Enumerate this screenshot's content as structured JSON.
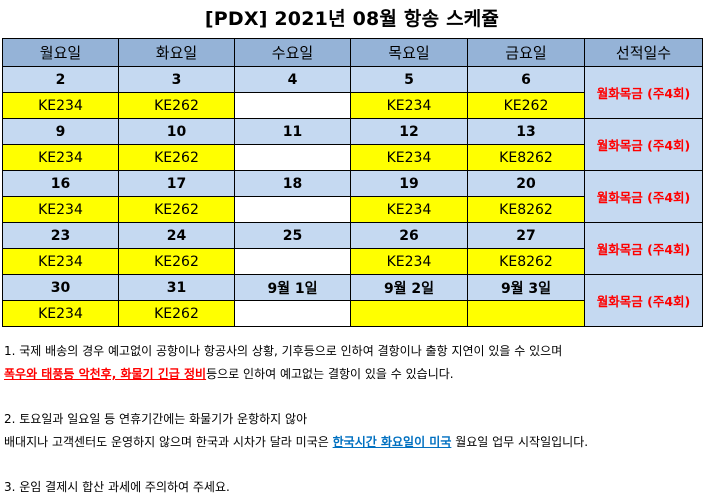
{
  "title": "[PDX] 2021년 08월 항송 스케쥴",
  "headers": [
    "월요일",
    "화요일",
    "수요일",
    "목요일",
    "금요일",
    "선적일수"
  ],
  "weeks": [
    {
      "dates": [
        "2",
        "3",
        "4",
        "5",
        "6"
      ],
      "flights": [
        "KE234",
        "KE262",
        "",
        "KE234",
        "KE262"
      ],
      "freq": "월화목금 (주4회)"
    },
    {
      "dates": [
        "9",
        "10",
        "11",
        "12",
        "13"
      ],
      "flights": [
        "KE234",
        "KE262",
        "",
        "KE234",
        "KE8262"
      ],
      "freq": "월화목금 (주4회)"
    },
    {
      "dates": [
        "16",
        "17",
        "18",
        "19",
        "20"
      ],
      "flights": [
        "KE234",
        "KE262",
        "",
        "KE234",
        "KE8262"
      ],
      "freq": "월화목금 (주4회)"
    },
    {
      "dates": [
        "23",
        "24",
        "25",
        "26",
        "27"
      ],
      "flights": [
        "KE234",
        "KE262",
        "",
        "KE234",
        "KE8262"
      ],
      "freq": "월화목금 (주4회)"
    },
    {
      "dates": [
        "30",
        "31",
        "9월 1일",
        "9월 2일",
        "9월 3일"
      ],
      "flights": [
        "KE234",
        "KE262",
        "",
        "",
        ""
      ],
      "freq": "월화목금 (주4회)"
    }
  ],
  "notes": {
    "n1_line1": "1. 국제 배송의 경우 예고없이 공항이나 항공사의 상황, 기후등으로 인하여 결항이나 출항 지연이 있을 수 있으며",
    "n1_red": "폭우와 태풍등 악천후, 화물기 긴급 정비",
    "n1_rest": "등으로 인하여 예고없는 결항이 있을 수 있습니다.",
    "n2_line1": "2. 토요일과 일요일 등 연휴기간에는 화물기가 운항하지 않아",
    "n2_pre": "배대지나 고객센터도 운영하지 않으며 한국과 시차가 달라 미국은 ",
    "n2_blue": "한국시간 화요일이 미국",
    "n2_post": " 월요일 업무 시작일입니다.",
    "n3": "3. 운임 결제시 합산 과세에 주의하여 주세요."
  },
  "colors": {
    "header_bg": "#95b3d7",
    "date_bg": "#c5d9f1",
    "flight_bg": "#ffff00",
    "freq_text": "#ff0000",
    "link_blue": "#0070c0"
  }
}
